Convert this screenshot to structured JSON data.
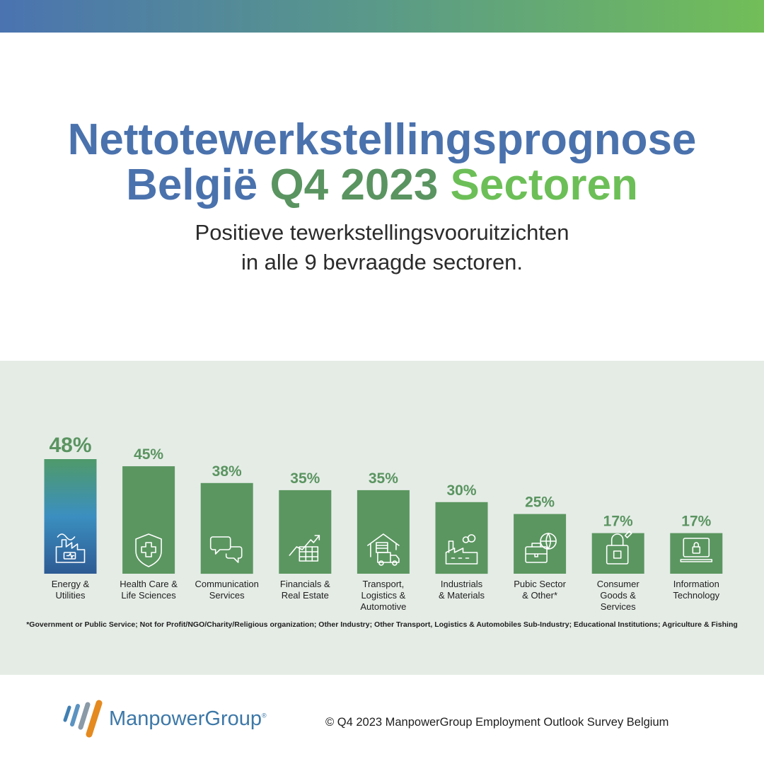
{
  "header": {
    "title_line1": "Nettotewerkstellingsprognose",
    "title_belgie": "België",
    "title_period": "Q4 2023",
    "title_sectoren": "Sectoren",
    "subtitle_line1": "Positieve tewerkstellingsvooruitzichten",
    "subtitle_line2": "in alle 9 bevraagde sectoren."
  },
  "colors": {
    "title_blue": "#4a72ad",
    "title_green_dark": "#5a9460",
    "title_green_light": "#6cbf57",
    "bar_green": "#5b9660",
    "highlight_gradient_top": "#4f9a6a",
    "highlight_gradient_mid": "#3b8fc0",
    "highlight_gradient_bottom": "#2d5a93",
    "panel_bg": "#e5ece6"
  },
  "chart_data": {
    "type": "bar",
    "unit": "%",
    "ylim": [
      0,
      50
    ],
    "grid": false,
    "legend": "none",
    "categories": [
      [
        "Energy &",
        "Utilities"
      ],
      [
        "Health Care &",
        "Life Sciences"
      ],
      [
        "Communication",
        "Services"
      ],
      [
        "Financials &",
        "Real Estate"
      ],
      [
        "Transport,",
        "Logistics &",
        "Automotive"
      ],
      [
        "Industrials",
        "& Materials"
      ],
      [
        "Pubic Sector",
        "& Other*"
      ],
      [
        "Consumer",
        "Goods &",
        "Services"
      ],
      [
        "Information",
        "Technology"
      ]
    ],
    "values": [
      48,
      45,
      38,
      35,
      35,
      30,
      25,
      17,
      17
    ],
    "value_labels": [
      "48%",
      "45%",
      "38%",
      "35%",
      "35%",
      "30%",
      "25%",
      "17%",
      "17%"
    ],
    "icons": [
      "factory-battery-icon",
      "medical-shield-icon",
      "chat-bubbles-icon",
      "growth-chart-icon",
      "warehouse-truck-icon",
      "industrial-plant-icon",
      "globe-briefcase-icon",
      "shopping-bag-icon",
      "laptop-lock-icon"
    ],
    "highlight_index": 0
  },
  "footnote": "*Government or Public Service; Not for Profit/NGO/Charity/Religious organization; Other Industry; Other Transport, Logistics & Automobiles Sub-Industry; Educational Institutions; Agriculture & Fishing",
  "footer": {
    "logo_text": "ManpowerGroup",
    "logo_mark": "®",
    "copyright": "© Q4 2023 ManpowerGroup Employment Outlook Survey Belgium"
  }
}
